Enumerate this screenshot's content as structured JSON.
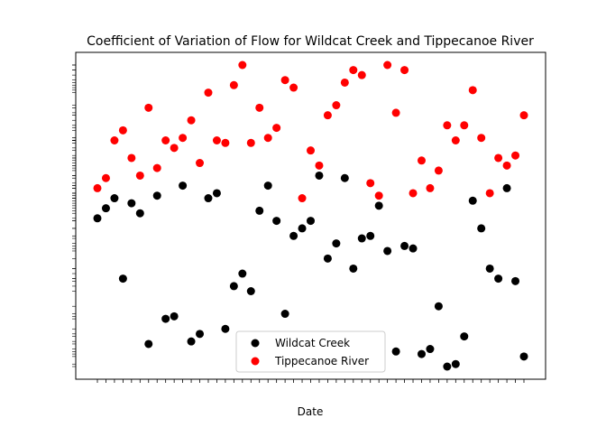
{
  "chart_data": {
    "type": "scatter",
    "title": "Coefficient of Variation of Flow for Wildcat Creek and Tippecanoe River",
    "xlabel": "Date",
    "ylabel": "",
    "colors": {
      "Wildcat Creek": "#000000",
      "Tippecanoe River": "#ff0000"
    },
    "legend_position": "lower-center",
    "grid": false,
    "ytick_note": "y tick labels are long decimal strings drawn overlapping; they are unreadable in the image",
    "series": [
      {
        "name": "Wildcat Creek",
        "x": [
          "1969",
          "1970",
          "1971",
          "1972",
          "1973",
          "1974",
          "1975",
          "1976",
          "1977",
          "1978",
          "1979",
          "1980",
          "1981",
          "1982",
          "1983",
          "1984",
          "1985",
          "1986",
          "1987",
          "1988",
          "1989",
          "1990",
          "1991",
          "1992",
          "1993",
          "1994",
          "1995",
          "1996",
          "1997",
          "1998",
          "1999",
          "2000",
          "2001",
          "2002",
          "2003",
          "2004",
          "2005",
          "2006",
          "2007",
          "2008",
          "2009",
          "2010",
          "2011",
          "2012",
          "2013",
          "2014",
          "2015",
          "2016",
          "2017",
          "2018",
          "2019"
        ],
        "y": [
          0.62,
          0.66,
          0.7,
          0.38,
          0.68,
          0.64,
          0.12,
          0.71,
          0.22,
          0.23,
          0.75,
          0.13,
          0.16,
          0.7,
          0.72,
          0.18,
          0.35,
          0.4,
          0.33,
          0.65,
          0.75,
          0.61,
          0.24,
          0.55,
          0.58,
          0.61,
          0.79,
          0.46,
          0.52,
          0.78,
          0.42,
          0.54,
          0.55,
          0.67,
          0.49,
          0.09,
          0.51,
          0.5,
          0.08,
          0.1,
          0.27,
          0.03,
          0.04,
          0.15,
          0.69,
          0.58,
          0.42,
          0.38,
          0.74,
          0.37,
          0.07
        ]
      },
      {
        "name": "Tippecanoe River",
        "x": [
          "1969",
          "1970",
          "1971",
          "1972",
          "1973",
          "1974",
          "1975",
          "1976",
          "1977",
          "1978",
          "1979",
          "1980",
          "1981",
          "1982",
          "1983",
          "1984",
          "1985",
          "1986",
          "1987",
          "1988",
          "1989",
          "1990",
          "1991",
          "1992",
          "1993",
          "1994",
          "1995",
          "1996",
          "1997",
          "1998",
          "1999",
          "2000",
          "2001",
          "2002",
          "2003",
          "2004",
          "2005",
          "2006",
          "2007",
          "2008",
          "2009",
          "2010",
          "2011",
          "2012",
          "2013",
          "2014",
          "2015",
          "2016",
          "2017",
          "2018",
          "2019"
        ],
        "y": [
          0.74,
          0.78,
          0.93,
          0.97,
          0.86,
          0.79,
          1.06,
          0.82,
          0.93,
          0.9,
          0.94,
          1.01,
          0.84,
          1.12,
          0.93,
          0.92,
          1.15,
          1.23,
          0.92,
          1.06,
          0.94,
          0.98,
          1.17,
          1.14,
          0.7,
          0.89,
          0.83,
          1.03,
          1.07,
          1.16,
          1.21,
          1.19,
          0.76,
          0.71,
          1.23,
          1.04,
          1.21,
          0.72,
          0.85,
          0.74,
          0.81,
          0.99,
          0.93,
          0.99,
          1.13,
          0.94,
          0.72,
          0.86,
          0.83,
          0.87,
          1.03
        ]
      }
    ]
  }
}
